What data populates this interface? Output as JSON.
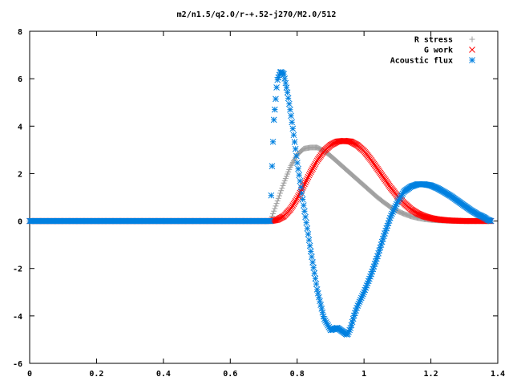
{
  "chart_data": {
    "type": "scatter",
    "title": "m2/n1.5/q2.0/r-+.52-j270/M2.0/512",
    "xlim": [
      0,
      1.4
    ],
    "ylim": [
      -6,
      8
    ],
    "xticks": [
      "0",
      "0.2",
      "0.4",
      "0.6",
      "0.8",
      "1",
      "1.2",
      "1.4"
    ],
    "yticks": [
      "-6",
      "-4",
      "-2",
      "0",
      "2",
      "4",
      "6",
      "8"
    ],
    "grid": false,
    "legend_position": "top-right",
    "series": [
      {
        "name": "R stress",
        "color": "#a0a0a0",
        "marker": "plus",
        "x": [
          0.0,
          0.1,
          0.2,
          0.3,
          0.4,
          0.5,
          0.6,
          0.7,
          0.72,
          0.74,
          0.76,
          0.78,
          0.8,
          0.82,
          0.84,
          0.86,
          0.88,
          0.9,
          0.92,
          0.94,
          0.96,
          0.98,
          1.0,
          1.02,
          1.04,
          1.06,
          1.08,
          1.1,
          1.12,
          1.14,
          1.16,
          1.18,
          1.2,
          1.22,
          1.24,
          1.26,
          1.28,
          1.3,
          1.32,
          1.34,
          1.36,
          1.38
        ],
        "y": [
          0,
          0,
          0,
          0,
          0,
          0,
          0,
          0,
          0,
          0.8,
          1.6,
          2.3,
          2.8,
          3.05,
          3.1,
          3.1,
          2.95,
          2.75,
          2.5,
          2.25,
          2.0,
          1.75,
          1.5,
          1.25,
          1.0,
          0.78,
          0.58,
          0.42,
          0.3,
          0.2,
          0.13,
          0.08,
          0.05,
          0.03,
          0.02,
          0.01,
          0.01,
          0.0,
          0.0,
          0.0,
          0.0,
          0.0
        ]
      },
      {
        "name": "G work",
        "color": "#ff0000",
        "marker": "cross",
        "x": [
          0.0,
          0.1,
          0.2,
          0.3,
          0.4,
          0.5,
          0.6,
          0.7,
          0.72,
          0.74,
          0.76,
          0.78,
          0.8,
          0.82,
          0.84,
          0.86,
          0.88,
          0.9,
          0.92,
          0.94,
          0.96,
          0.98,
          1.0,
          1.02,
          1.04,
          1.06,
          1.08,
          1.1,
          1.12,
          1.14,
          1.16,
          1.18,
          1.2,
          1.22,
          1.24,
          1.26,
          1.28,
          1.3,
          1.32,
          1.34,
          1.36,
          1.38
        ],
        "y": [
          0,
          0,
          0,
          0,
          0,
          0,
          0,
          0,
          0,
          0.05,
          0.2,
          0.5,
          0.95,
          1.5,
          2.05,
          2.55,
          2.95,
          3.2,
          3.35,
          3.38,
          3.35,
          3.2,
          2.95,
          2.6,
          2.2,
          1.8,
          1.4,
          1.05,
          0.75,
          0.5,
          0.32,
          0.2,
          0.12,
          0.07,
          0.04,
          0.02,
          0.01,
          0.0,
          0.0,
          0.0,
          0.0,
          0.0
        ]
      },
      {
        "name": "Acoustic flux",
        "color": "#0080e0",
        "marker": "star",
        "x": [
          0.0,
          0.1,
          0.2,
          0.3,
          0.4,
          0.5,
          0.6,
          0.7,
          0.72,
          0.725,
          0.73,
          0.735,
          0.74,
          0.75,
          0.76,
          0.77,
          0.78,
          0.79,
          0.8,
          0.82,
          0.84,
          0.86,
          0.88,
          0.9,
          0.92,
          0.94,
          0.95,
          0.96,
          0.97,
          0.98,
          1.0,
          1.02,
          1.04,
          1.06,
          1.08,
          1.1,
          1.12,
          1.14,
          1.16,
          1.18,
          1.2,
          1.22,
          1.24,
          1.26,
          1.28,
          1.3,
          1.32,
          1.34,
          1.36,
          1.37,
          1.38
        ],
        "y": [
          0,
          0,
          0,
          0,
          0,
          0,
          0,
          0,
          0,
          2.3,
          4.2,
          5.0,
          5.9,
          6.3,
          6.2,
          5.5,
          4.6,
          3.6,
          2.5,
          0.6,
          -1.2,
          -2.9,
          -4.1,
          -4.6,
          -4.5,
          -4.7,
          -4.8,
          -4.5,
          -4.0,
          -3.6,
          -3.0,
          -2.3,
          -1.5,
          -0.6,
          0.2,
          0.8,
          1.25,
          1.45,
          1.55,
          1.55,
          1.5,
          1.38,
          1.22,
          1.05,
          0.85,
          0.65,
          0.45,
          0.28,
          0.15,
          0.05,
          0.0
        ]
      }
    ]
  }
}
